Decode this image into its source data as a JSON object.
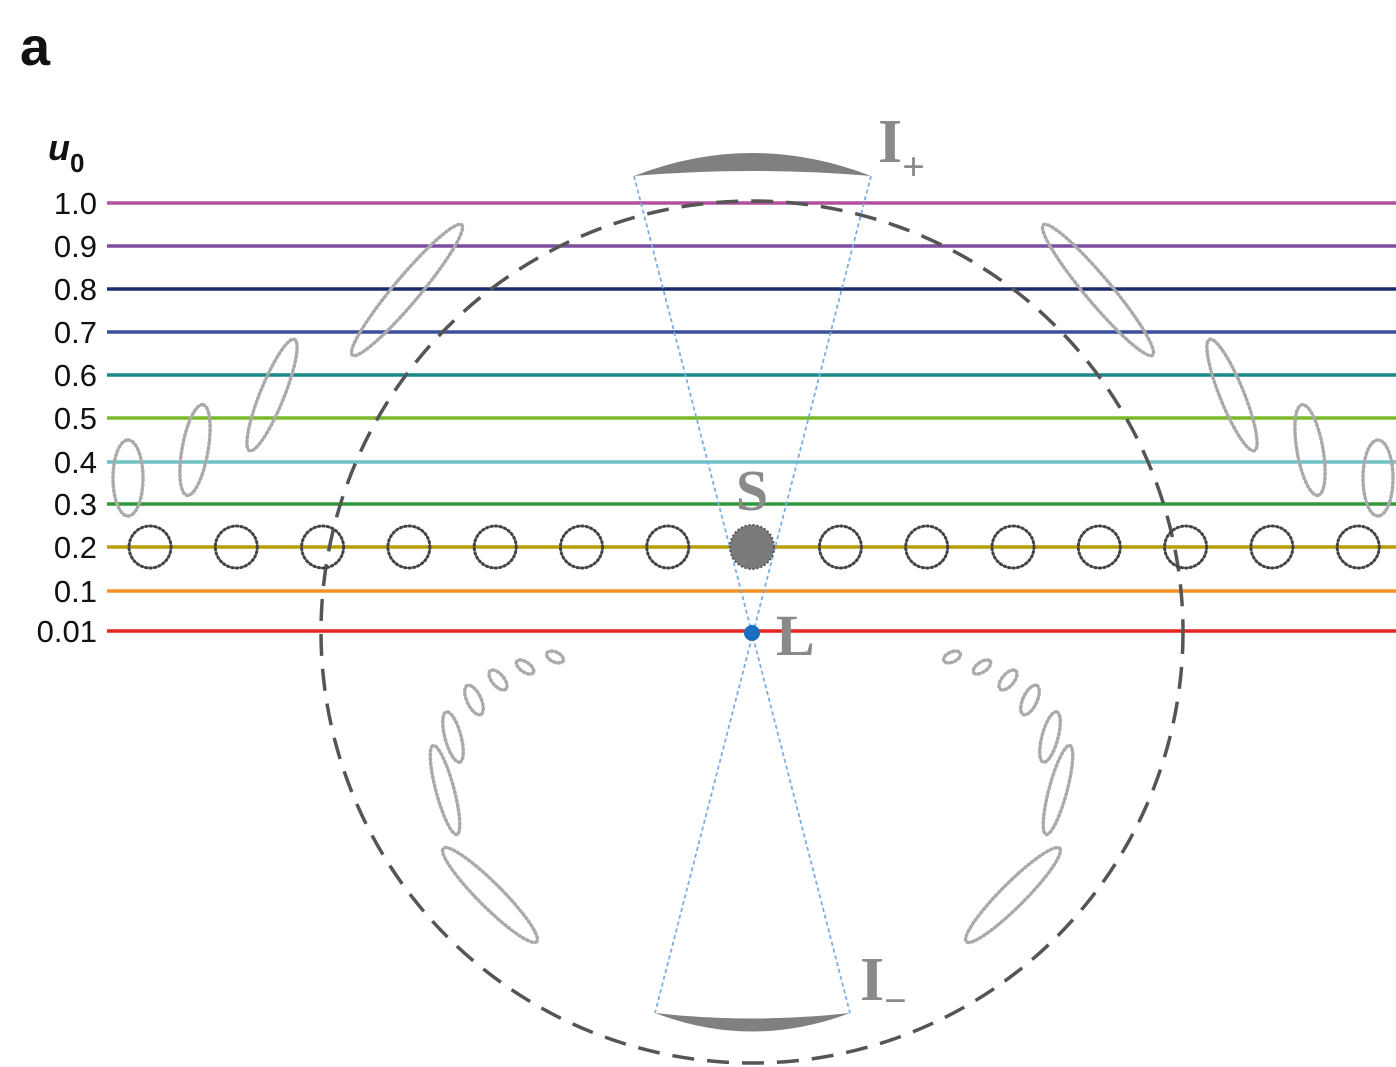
{
  "panel_label": "a",
  "axis_label": {
    "symbol": "u",
    "subscript": "0"
  },
  "tracks": [
    {
      "label": "1.0",
      "color": "#b4509e"
    },
    {
      "label": "0.9",
      "color": "#7d4e9f"
    },
    {
      "label": "0.8",
      "color": "#1c2b6c"
    },
    {
      "label": "0.7",
      "color": "#3b4f9b"
    },
    {
      "label": "0.6",
      "color": "#1b8888"
    },
    {
      "label": "0.5",
      "color": "#7ab929"
    },
    {
      "label": "0.4",
      "color": "#6fc1c5"
    },
    {
      "label": "0.3",
      "color": "#2f9a3b"
    },
    {
      "label": "0.2",
      "color": "#b59f05"
    },
    {
      "label": "0.1",
      "color": "#f39121"
    },
    {
      "label": "0.01",
      "color": "#e2231f"
    }
  ],
  "source": "S",
  "lens": "L",
  "images": [
    {
      "symbol": "I",
      "subscript": "+"
    },
    {
      "symbol": "I",
      "subscript": "−"
    }
  ]
}
